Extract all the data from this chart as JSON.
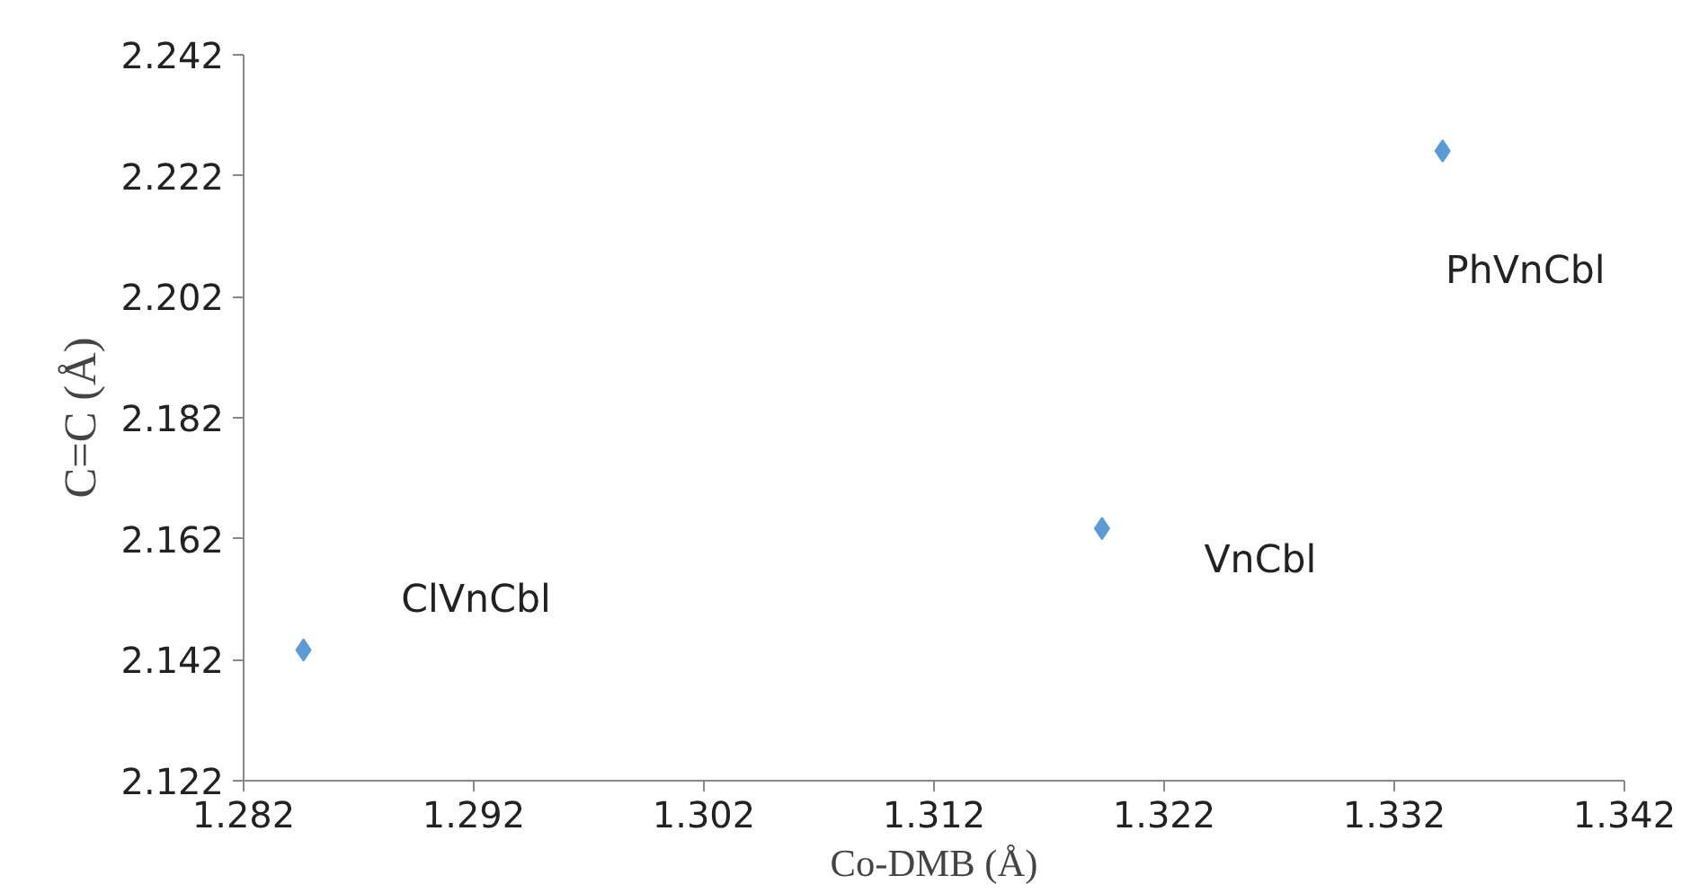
{
  "chart_data": {
    "type": "scatter",
    "xlabel": "Co-DMB (Å)",
    "ylabel": "C=C (Å)",
    "x": [
      1.2846,
      1.3193,
      1.3341
    ],
    "series": [
      {
        "color": "#5b9bd5",
        "values": [
          2.1436,
          2.1637,
          2.2261
        ]
      }
    ],
    "xlim": [
      1.282,
      1.342
    ],
    "xticks": [
      1.282,
      1.292,
      1.302,
      1.312,
      1.322,
      1.332,
      1.342
    ],
    "ylim": [
      2.122,
      2.242
    ],
    "yticks": [
      2.122,
      2.142,
      2.162,
      2.182,
      2.202,
      2.222,
      2.242
    ],
    "annotations": [
      {
        "text": "ClVnCbl",
        "x": 1.2846,
        "y": 2.1436
      },
      {
        "text": "VnCbl",
        "x": 1.3193,
        "y": 2.1637
      },
      {
        "text": "PhVnCbl",
        "x": 1.3341,
        "y": 2.2261
      }
    ],
    "marker": "diamond",
    "grid": false
  }
}
